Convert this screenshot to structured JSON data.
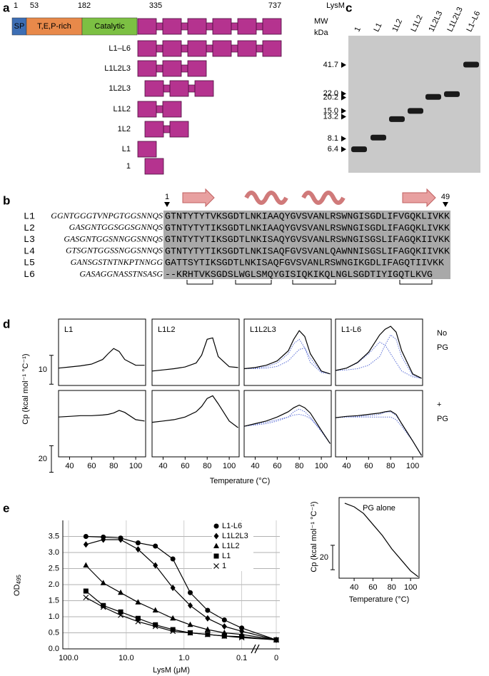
{
  "panel_a": {
    "label": "a",
    "positions": [
      1,
      53,
      182,
      335,
      737
    ],
    "domains": [
      "SP",
      "T,E,P-rich",
      "Catalytic"
    ],
    "lysm": "LysM",
    "constructs": [
      "L1–L6",
      "L1L2L3",
      "1L2L3",
      "L1L2",
      "1L2",
      "L1",
      "1"
    ]
  },
  "panel_b": {
    "label": "b",
    "start": 1,
    "end": 49,
    "rows": [
      {
        "name": "L1",
        "linker": "GGNTGGGTVNPGTGGSNNQS",
        "seq": "GTNTYTYTVKSGDTLNKIAAQYGVSVANLRSWNGISGDLIFVGQKLIVKK"
      },
      {
        "name": "L2",
        "linker": "GASGNTGGSGGSGNNQS",
        "seq": "GTNTYTYTIKSGDTLNKIAAQYGVSVANLRSWNGISGDLIFAGQKLIVKK"
      },
      {
        "name": "L3",
        "linker": "GASGNTGGSNNGGSNNQS",
        "seq": "GTNTYTYTIKSGDTLNKISAQYGVSVANLRSWNGISGSLIFAGQKIIVKK"
      },
      {
        "name": "L4",
        "linker": "GTSGNTGGSSNGGSNNQS",
        "seq": "GTNTYTYTIKSGDTLNKISAQFGVSVANLQAWNNISGSLIFAGQKIIVKK"
      },
      {
        "name": "L5",
        "linker": "GANSGSTNTNKPTNNGG",
        "seq": "GATTSYTIKSGDTLNKISAQFGVSVANLRSWNGIKGDLIFAGQTIIVKK"
      },
      {
        "name": "L6",
        "linker": "GASAGGNASSTNSASG",
        "seq": "--KRHTVKSGDSLWGLSMQYGISIQKIKQLNGLSGDTIYIGQTLKVG"
      }
    ]
  },
  "panel_c": {
    "label": "c",
    "mw": "MW",
    "unit": "kDa",
    "markers": [
      41.7,
      {
        "value": 22,
        "label": "22.0"
      },
      20.2,
      {
        "value": 15,
        "label": "15.0"
      },
      13.2,
      8.1,
      6.4
    ],
    "lanes": [
      "1",
      "L1",
      "1L2",
      "L1L2",
      "1L2L3",
      "L1L2L3",
      "L1–L6"
    ],
    "bands": [
      6.4,
      8.3,
      12.5,
      15,
      20.5,
      21.8,
      42
    ]
  },
  "panel_d": {
    "label": "d",
    "row_labels": [
      [
        "No",
        "PG"
      ],
      [
        "+",
        "PG"
      ]
    ],
    "y_label": "Cp (kcal mol⁻¹ °C⁻¹)",
    "x_label": "Temperature (°C)",
    "scale_bars": [
      10,
      20
    ]
  },
  "panel_e": {
    "label": "e"
  },
  "chart_data": [
    {
      "type": "line",
      "title": "L1",
      "x": [
        30,
        40,
        50,
        60,
        70,
        75,
        80,
        85,
        90,
        100,
        108
      ],
      "xlim": [
        30,
        109
      ],
      "ylim": [
        0,
        23
      ],
      "series": [
        {
          "color": "#000000",
          "values": [
            6.0,
            6.4,
            6.8,
            7.4,
            9.0,
            11.0,
            12.8,
            11.8,
            9.0,
            7.0,
            7.0
          ]
        }
      ]
    },
    {
      "type": "line",
      "title": "L1L2",
      "x": [
        30,
        40,
        50,
        60,
        70,
        75,
        80,
        85,
        90,
        100,
        108
      ],
      "xlim": [
        30,
        109
      ],
      "ylim": [
        0,
        23
      ],
      "series": [
        {
          "color": "#000000",
          "values": [
            5.0,
            5.4,
            5.8,
            6.4,
            7.8,
            10.5,
            16.0,
            16.5,
            10.0,
            6.5,
            6.2
          ]
        }
      ]
    },
    {
      "type": "line",
      "title": "L1L2L3",
      "x": [
        30,
        40,
        50,
        60,
        70,
        75,
        80,
        85,
        90,
        100,
        108
      ],
      "xlim": [
        30,
        109
      ],
      "ylim": [
        0,
        23
      ],
      "series": [
        {
          "color": "#5b6fd6",
          "style": "dotted",
          "values": [
            5.8,
            6.0,
            6.5,
            7.8,
            11.0,
            14.5,
            16.0,
            13.0,
            8.0,
            4.5,
            4.0
          ]
        },
        {
          "color": "#5b6fd6",
          "style": "dotted",
          "values": [
            5.8,
            5.8,
            6.0,
            6.6,
            8.5,
            10.5,
            12.5,
            13.0,
            9.5,
            4.8,
            4.0
          ]
        },
        {
          "color": "#000000",
          "values": [
            5.8,
            6.2,
            7.0,
            8.5,
            12.0,
            16.0,
            19.0,
            17.0,
            11.0,
            5.0,
            4.0
          ]
        }
      ]
    },
    {
      "type": "line",
      "title": "L1-L6",
      "x": [
        30,
        40,
        50,
        60,
        70,
        75,
        80,
        85,
        90,
        100,
        108
      ],
      "xlim": [
        30,
        109
      ],
      "ylim": [
        0,
        23
      ],
      "series": [
        {
          "color": "#5b6fd6",
          "style": "dotted",
          "values": [
            5.2,
            6.0,
            7.8,
            11.0,
            15.0,
            14.0,
            11.0,
            8.0,
            5.0,
            3.0,
            2.5
          ]
        },
        {
          "color": "#5b6fd6",
          "style": "dotted",
          "values": [
            5.2,
            5.4,
            5.8,
            7.0,
            10.0,
            14.0,
            17.5,
            16.0,
            10.0,
            3.5,
            2.5
          ]
        },
        {
          "color": "#000000",
          "values": [
            5.2,
            6.0,
            8.0,
            11.5,
            17.5,
            19.5,
            20.5,
            18.5,
            12.0,
            4.0,
            2.5
          ]
        }
      ]
    },
    {
      "type": "line",
      "x": [
        30,
        40,
        50,
        60,
        70,
        75,
        80,
        85,
        90,
        100,
        108
      ],
      "xlim": [
        30,
        109
      ],
      "ylim": [
        0,
        50
      ],
      "xticks": [
        40,
        60,
        80,
        100
      ],
      "series": [
        {
          "color": "#000000",
          "values": [
            30,
            30.5,
            31,
            31,
            31.5,
            32,
            33,
            35,
            33.5,
            28,
            27
          ]
        }
      ]
    },
    {
      "type": "line",
      "x": [
        30,
        40,
        50,
        60,
        70,
        75,
        80,
        85,
        90,
        100,
        108
      ],
      "xlim": [
        30,
        109
      ],
      "ylim": [
        0,
        50
      ],
      "xticks": [
        40,
        60,
        80,
        100
      ],
      "series": [
        {
          "color": "#000000",
          "values": [
            26,
            27,
            28,
            30,
            34,
            38,
            44,
            46,
            40,
            27,
            22
          ]
        }
      ]
    },
    {
      "type": "line",
      "x": [
        30,
        40,
        50,
        60,
        70,
        75,
        80,
        85,
        90,
        100,
        108
      ],
      "xlim": [
        30,
        109
      ],
      "ylim": [
        0,
        50
      ],
      "xticks": [
        40,
        60,
        80,
        100
      ],
      "series": [
        {
          "color": "#5b6fd6",
          "style": "dotted",
          "values": [
            23,
            24.5,
            26,
            28,
            30,
            31.5,
            32,
            31,
            29,
            20,
            10
          ]
        },
        {
          "color": "#5b6fd6",
          "style": "dotted",
          "values": [
            23,
            24,
            25,
            27,
            30,
            34,
            36,
            34,
            30,
            19,
            10
          ]
        },
        {
          "color": "#000000",
          "values": [
            23,
            25,
            27,
            30,
            34,
            37,
            39,
            37,
            33,
            20,
            10
          ]
        }
      ]
    },
    {
      "type": "line",
      "x": [
        30,
        40,
        50,
        60,
        70,
        75,
        80,
        85,
        90,
        100,
        108
      ],
      "xlim": [
        30,
        109
      ],
      "ylim": [
        0,
        50
      ],
      "xticks": [
        40,
        60,
        80,
        100
      ],
      "series": [
        {
          "color": "#5b6fd6",
          "style": "dotted",
          "values": [
            29.5,
            30,
            30,
            30,
            30,
            30,
            30,
            28,
            23,
            12,
            1
          ]
        },
        {
          "color": "#5b6fd6",
          "style": "dotted",
          "values": [
            29.5,
            30,
            30.5,
            31,
            32,
            33.5,
            34,
            31,
            25,
            12,
            1
          ]
        },
        {
          "color": "#000000",
          "values": [
            29.5,
            30.5,
            31,
            32,
            33,
            34,
            34.5,
            32,
            25,
            12,
            1
          ]
        }
      ]
    },
    {
      "type": "line",
      "title": "PG alone",
      "x_label": "Temperature (°C)",
      "y_label": "Cp (kcal mol⁻¹ °C⁻¹)",
      "scale_bar": 20,
      "x": [
        30,
        40,
        50,
        60,
        70,
        80,
        90,
        100,
        108
      ],
      "xlim": [
        24,
        109
      ],
      "ylim": [
        0,
        66
      ],
      "xticks": [
        40,
        60,
        80,
        100
      ],
      "series": [
        {
          "color": "#000000",
          "values": [
            61.4,
            58.4,
            53,
            44,
            35,
            24,
            15,
            6,
            1.2
          ]
        }
      ]
    },
    {
      "type": "line",
      "log_x": true,
      "x_reversed": true,
      "x_label": "LysM (μM)",
      "y_label": "OD",
      "y_label_sub": "495",
      "x": [
        50,
        25,
        12.5,
        6.25,
        3.13,
        1.56,
        0.78,
        0.39,
        0.2,
        0.1,
        0
      ],
      "xlim": [
        100,
        0.05
      ],
      "ylim": [
        0,
        4
      ],
      "xticks": [
        {
          "value": 100,
          "label": "100.0"
        },
        {
          "value": 10,
          "label": "10.0"
        },
        {
          "value": 1,
          "label": "1.0"
        },
        0.1,
        0
      ],
      "yticks": [
        {
          "value": 0,
          "label": "0.0"
        },
        0.5,
        {
          "value": 1,
          "label": "1.0"
        },
        1.5,
        {
          "value": 2,
          "label": "2.0"
        },
        2.5,
        {
          "value": 3,
          "label": "3.0"
        },
        3.5
      ],
      "grid": true,
      "legend": "upper right",
      "series": [
        {
          "name": "L1-L6",
          "marker": "circle",
          "color": "#000000",
          "values": [
            3.5,
            3.48,
            3.45,
            3.3,
            3.2,
            2.8,
            1.75,
            1.2,
            0.9,
            0.65,
            0.28
          ]
        },
        {
          "name": "L1L2L3",
          "marker": "diamond",
          "color": "#000000",
          "values": [
            3.25,
            3.4,
            3.4,
            3.1,
            2.6,
            1.9,
            1.35,
            0.95,
            0.7,
            0.55,
            0.28
          ]
        },
        {
          "name": "L1L2",
          "marker": "triangle",
          "color": "#000000",
          "values": [
            2.6,
            2.05,
            1.75,
            1.45,
            1.2,
            0.95,
            0.75,
            0.6,
            0.5,
            0.45,
            0.28
          ]
        },
        {
          "name": "L1",
          "marker": "square",
          "color": "#000000",
          "values": [
            1.8,
            1.35,
            1.15,
            0.95,
            0.75,
            0.6,
            0.5,
            0.45,
            0.4,
            0.38,
            0.28
          ]
        },
        {
          "name": "1",
          "marker": "cross",
          "color": "#000000",
          "values": [
            1.6,
            1.3,
            1.05,
            0.85,
            0.7,
            0.55,
            0.5,
            0.45,
            0.4,
            0.35,
            0.28
          ]
        }
      ]
    }
  ]
}
